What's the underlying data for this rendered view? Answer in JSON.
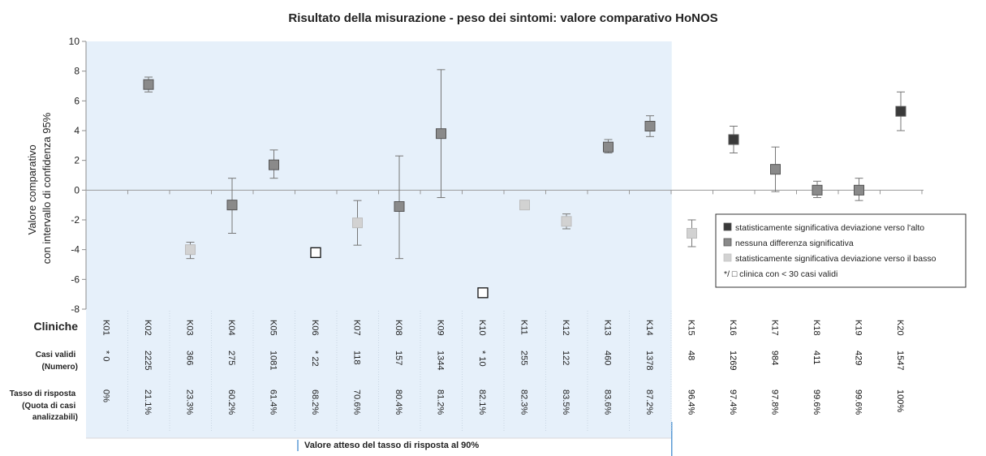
{
  "chart_data": {
    "type": "scatter",
    "title": "Risultato della misurazione - peso dei sintomi:  valore comparativo HoNOS",
    "ylabel_line1": "Valore comparativo",
    "ylabel_line2": "con intervallo di confidenza 95%",
    "ylim": [
      -8,
      10
    ],
    "yticks": [
      10,
      8,
      6,
      4,
      2,
      0,
      -2,
      -4,
      -6,
      -8
    ],
    "grid": false,
    "legend_position": "right",
    "row_headers": {
      "clinics": "Cliniche",
      "valid_cases_title": "Casi validi",
      "valid_cases_sub": "(Numero)",
      "response_title": "Tasso di risposta",
      "response_sub1": "(Quota di casi",
      "response_sub2": "analizzabili)"
    },
    "categories": [
      "K01",
      "K02",
      "K03",
      "K04",
      "K05",
      "K06",
      "K07",
      "K08",
      "K09",
      "K10",
      "K11",
      "K12",
      "K13",
      "K14",
      "K15",
      "K16",
      "K17",
      "K18",
      "K19",
      "K20"
    ],
    "valid_cases": [
      "* 0",
      "2225",
      "366",
      "275",
      "1081",
      "* 22",
      "118",
      "157",
      "1344",
      "* 10",
      "255",
      "122",
      "460",
      "1378",
      "48",
      "1269",
      "984",
      "411",
      "429",
      "1547"
    ],
    "response_rates": [
      "0%",
      "21.1%",
      "23.3%",
      "60.2%",
      "61.4%",
      "68.2%",
      "70.6%",
      "80.4%",
      "81.2%",
      "82.1%",
      "82.3%",
      "83.5%",
      "83.6%",
      "87.2%",
      "96.4%",
      "97.4%",
      "97.8%",
      "99.6%",
      "99.6%",
      "100%"
    ],
    "points": [
      {
        "x": "K01",
        "y": null,
        "low": null,
        "high": null,
        "status": "none"
      },
      {
        "x": "K02",
        "y": 7.1,
        "low": 6.6,
        "high": 7.6,
        "status": "mid"
      },
      {
        "x": "K03",
        "y": -4.0,
        "low": -4.6,
        "high": -3.5,
        "status": "low"
      },
      {
        "x": "K04",
        "y": -1.0,
        "low": -2.9,
        "high": 0.8,
        "status": "mid"
      },
      {
        "x": "K05",
        "y": 1.7,
        "low": 0.8,
        "high": 2.7,
        "status": "mid"
      },
      {
        "x": "K06",
        "y": -4.2,
        "low": null,
        "high": null,
        "status": "small"
      },
      {
        "x": "K07",
        "y": -2.2,
        "low": -3.7,
        "high": -0.7,
        "status": "low"
      },
      {
        "x": "K08",
        "y": -1.1,
        "low": -4.6,
        "high": 2.3,
        "status": "mid"
      },
      {
        "x": "K09",
        "y": 3.8,
        "low": -0.5,
        "high": 8.1,
        "status": "mid"
      },
      {
        "x": "K10",
        "y": -6.9,
        "low": null,
        "high": null,
        "status": "small"
      },
      {
        "x": "K11",
        "y": -1.0,
        "low": -1.0,
        "high": -1.0,
        "status": "low"
      },
      {
        "x": "K12",
        "y": -2.1,
        "low": -2.6,
        "high": -1.6,
        "status": "low"
      },
      {
        "x": "K13",
        "y": 2.9,
        "low": 2.5,
        "high": 3.4,
        "status": "mid"
      },
      {
        "x": "K14",
        "y": 4.3,
        "low": 3.6,
        "high": 5.0,
        "status": "mid"
      },
      {
        "x": "K15",
        "y": -2.9,
        "low": -3.8,
        "high": -2.0,
        "status": "low"
      },
      {
        "x": "K16",
        "y": 3.4,
        "low": 2.5,
        "high": 4.3,
        "status": "high"
      },
      {
        "x": "K17",
        "y": 1.4,
        "low": -0.1,
        "high": 2.9,
        "status": "mid"
      },
      {
        "x": "K18",
        "y": 0.0,
        "low": -0.5,
        "high": 0.6,
        "status": "mid"
      },
      {
        "x": "K19",
        "y": 0.0,
        "low": -0.7,
        "high": 0.8,
        "status": "mid"
      },
      {
        "x": "K20",
        "y": 5.3,
        "low": 4.0,
        "high": 6.6,
        "status": "high"
      }
    ],
    "shaded_clinics": [
      "K01",
      "K14"
    ],
    "legend": [
      {
        "status": "high",
        "label": "statisticamente significativa deviazione verso l'alto"
      },
      {
        "status": "mid",
        "label": "nessuna differenza significativa"
      },
      {
        "status": "low",
        "label": "statisticamente significativa deviazione verso il basso"
      },
      {
        "status": "small",
        "label": "*/ □ clinica con < 30 casi validi"
      }
    ],
    "footer_note": "Valore atteso del tasso di risposta al 90%",
    "colors": {
      "high": "#3a3a3a",
      "mid": "#8a8a8a",
      "low": "#d2d2d2",
      "small": "#ffffff",
      "shade": "#e6f0fa",
      "zero_line": "#9a9a9a",
      "accent": "#5b9bd5"
    }
  }
}
